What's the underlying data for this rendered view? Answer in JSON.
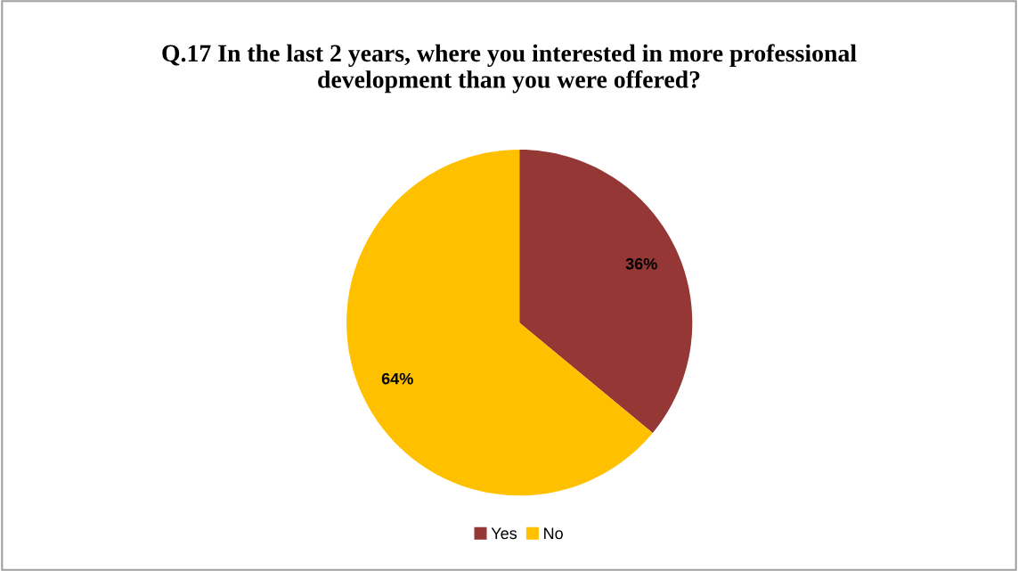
{
  "chart_data": {
    "type": "pie",
    "title": "Q.17 In the last 2 years, where you interested in more professional\ndevelopment than you were offered?",
    "categories": [
      "Yes",
      "No"
    ],
    "values": [
      36,
      64
    ],
    "colors": [
      "#953735",
      "#ffc000"
    ],
    "value_labels": [
      "36%",
      "64%"
    ],
    "legend": "bottom"
  }
}
